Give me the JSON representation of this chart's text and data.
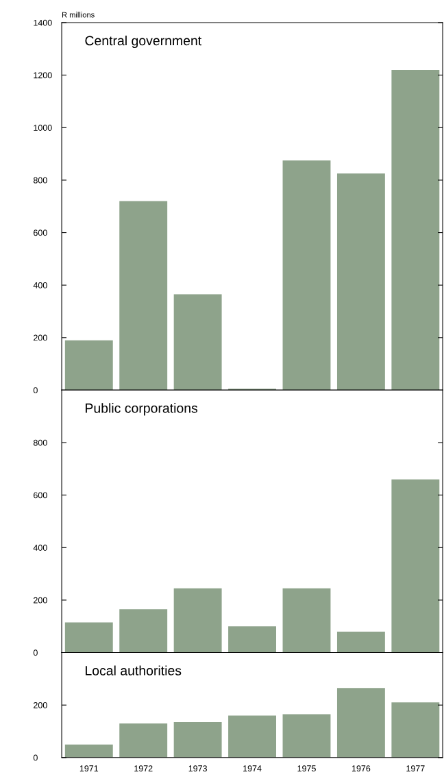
{
  "chart_data": [
    {
      "type": "bar",
      "title": "Central government",
      "ylabel": "R millions",
      "categories": [
        "1971",
        "1972",
        "1973",
        "1974",
        "1975",
        "1976",
        "1977"
      ],
      "values": [
        190,
        720,
        365,
        5,
        875,
        825,
        1220
      ],
      "color": "#8ea38b",
      "ylim": [
        0,
        1400
      ],
      "yticks": [
        0,
        200,
        400,
        600,
        800,
        1000,
        1200,
        1400
      ],
      "tick_labels": "y",
      "grid": false,
      "legend": false
    },
    {
      "type": "bar",
      "title": "Public corporations",
      "categories": [
        "1971",
        "1972",
        "1973",
        "1974",
        "1975",
        "1976",
        "1977"
      ],
      "values": [
        115,
        165,
        245,
        100,
        245,
        80,
        660
      ],
      "color": "#8ea38b",
      "ylim": [
        0,
        1000
      ],
      "yticks": [
        0,
        200,
        400,
        600,
        800
      ],
      "tick_labels": "y",
      "grid": false,
      "legend": false
    },
    {
      "type": "bar",
      "title": "Local authorities",
      "categories": [
        "1971",
        "1972",
        "1973",
        "1974",
        "1975",
        "1976",
        "1977"
      ],
      "values": [
        50,
        130,
        135,
        160,
        165,
        265,
        210
      ],
      "color": "#8ea38b",
      "ylim": [
        0,
        400
      ],
      "yticks": [
        0,
        200
      ],
      "grid": false,
      "legend": false
    }
  ]
}
